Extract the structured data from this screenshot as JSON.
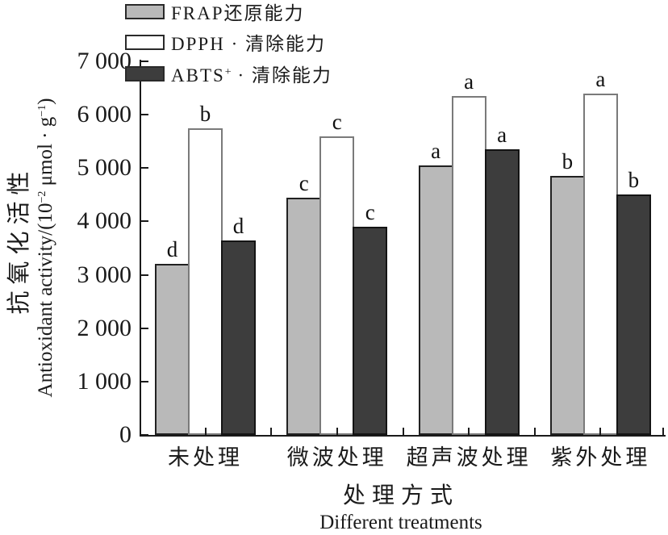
{
  "figure": {
    "background": "#ffffff",
    "axis_color": "#1a1a1a"
  },
  "legend": {
    "items": [
      {
        "pre": "FRAP",
        "sup": "",
        "post": "还原能力"
      },
      {
        "pre": "DPPH",
        "sup": "",
        "post": " · 清除能力"
      },
      {
        "pre": "ABTS",
        "sup": "+",
        "post": " · 清除能力"
      }
    ]
  },
  "y_axis": {
    "title_zh": "抗氧化活性",
    "title_en_pre": "Antioxidant activity/(10",
    "title_en_sup1": "−2",
    "title_en_mid": " μmol · g",
    "title_en_sup2": "−1",
    "title_en_post": ")",
    "tick_labels": [
      "0",
      "1 000",
      "2 000",
      "3 000",
      "4 000",
      "5 000",
      "6 000",
      "7 000"
    ]
  },
  "x_axis": {
    "title_zh": "处理方式",
    "title_en": "Different treatments"
  },
  "chart_data": {
    "type": "bar",
    "title": "",
    "categories": [
      "未处理",
      "微波处理",
      "超声波处理",
      "紫外处理"
    ],
    "series": [
      {
        "name": "FRAP还原能力",
        "color": "#b9b9b9",
        "border_color": "#212121",
        "values": [
          3200,
          4450,
          5050,
          4850
        ],
        "letters": [
          "d",
          "c",
          "a",
          "b"
        ]
      },
      {
        "name": "DPPH·清除能力",
        "color": "#ffffff",
        "border_color": "#7a7a7a",
        "values": [
          5750,
          5600,
          6350,
          6400
        ],
        "letters": [
          "b",
          "c",
          "a",
          "a"
        ]
      },
      {
        "name": "ABTS⁺·清除能力",
        "color": "#3d3d3d",
        "border_color": "#141414",
        "values": [
          3650,
          3900,
          5350,
          4500
        ],
        "letters": [
          "d",
          "c",
          "a",
          "b"
        ]
      }
    ],
    "ylabel_zh": "抗氧化活性",
    "ylabel_en": "Antioxidant activity/(10⁻² μmol·g⁻¹)",
    "xlabel_zh": "处理方式",
    "xlabel_en": "Different treatments",
    "ylim": [
      0,
      7000
    ],
    "y_tick_step": 1000,
    "grid": false,
    "legend_position": "top-left",
    "significance_letters": true
  }
}
